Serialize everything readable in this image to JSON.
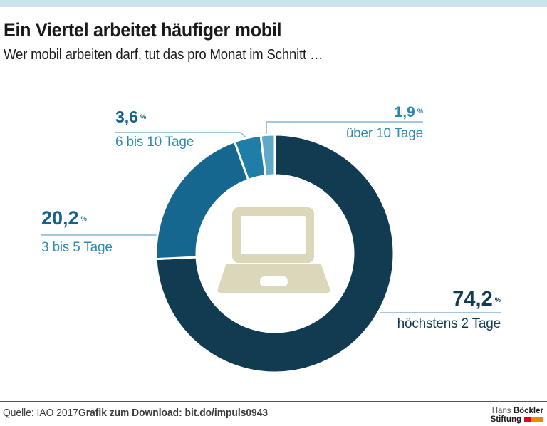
{
  "header": {
    "title": "Ein Viertel arbeitet häufiger mobil",
    "subtitle": "Wer mobil arbeiten darf, tut das pro Monat im Schnitt …"
  },
  "chart_data": {
    "type": "pie",
    "donut": true,
    "title": "Ein Viertel arbeitet häufiger mobil",
    "subtitle": "Wer mobil arbeiten darf, tut das pro Monat im Schnitt …",
    "unit": "%",
    "start_angle_deg": 0,
    "direction": "clockwise",
    "legend_position": "callout-labels",
    "center_icon": "laptop",
    "segments": [
      {
        "name": "höchstens 2 Tage",
        "value": 74.2,
        "value_display": "74,2",
        "color": "#113B50",
        "number_color": "#113B50",
        "label_color": "#113B50"
      },
      {
        "name": "3 bis 5 Tage",
        "value": 20.2,
        "value_display": "20,2",
        "color": "#16678F",
        "number_color": "#15638B",
        "label_color": "#2E8CB2"
      },
      {
        "name": "6 bis 10 Tage",
        "value": 3.6,
        "value_display": "3,6",
        "color": "#1F7EA8",
        "number_color": "#15638B",
        "label_color": "#2E8CB2"
      },
      {
        "name": "über 10 Tage",
        "value": 1.9,
        "value_display": "1,9",
        "color": "#5FA8C8",
        "number_color": "#2787AD",
        "label_color": "#2E8CB2"
      }
    ]
  },
  "footer": {
    "source_text": "Quelle: IAO 2017",
    "download_text": "Grafik zum Download: bit.do/impuls0943"
  },
  "logo": {
    "word1": "Hans",
    "word2": "Böckler",
    "word3": "Stiftung",
    "red": "#E2001A",
    "orange": "#F18700"
  },
  "colors": {
    "topbar": "#CDE2ED",
    "callout_line": "#85B4CE",
    "laptop": "#DBD7BA",
    "divider": "#FFFFFF"
  }
}
